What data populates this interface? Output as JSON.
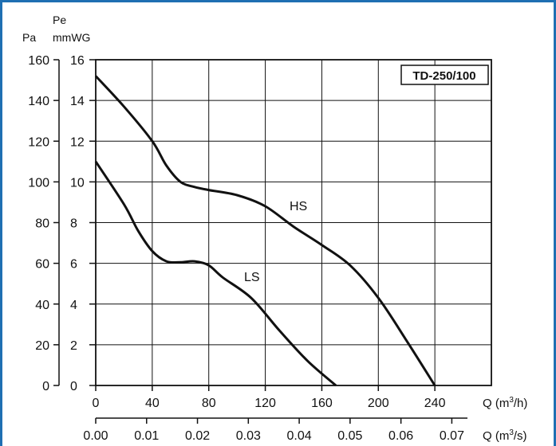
{
  "chart_data": {
    "type": "line",
    "model_label": "TD-250/100",
    "left_axis": {
      "symbol": "Pe",
      "unit_pa": "Pa",
      "unit_mmwg": "mmWG",
      "pa_ticks": [
        "160",
        "140",
        "120",
        "100",
        "80",
        "60",
        "40",
        "20",
        "0"
      ],
      "mmwg_ticks": [
        "16",
        "14",
        "12",
        "10",
        "8",
        "6",
        "4",
        "2",
        "0"
      ],
      "ylim_mmwg": [
        0,
        16
      ]
    },
    "x_axis_m3h": {
      "label": "Q (m",
      "sup": "3",
      "label_end": "/h)",
      "ticks": [
        "0",
        "40",
        "80",
        "120",
        "160",
        "200",
        "240"
      ],
      "xlim": [
        0,
        280
      ]
    },
    "x_axis_m3s": {
      "label": "Q (m",
      "sup": "3",
      "label_end": "/s)",
      "ticks": [
        "0.00",
        "0.01",
        "0.02",
        "0.03",
        "0.04",
        "0.05",
        "0.06",
        "0.07"
      ]
    },
    "series": [
      {
        "name": "HS",
        "x": [
          0,
          20,
          40,
          50,
          60,
          70,
          80,
          100,
          120,
          140,
          160,
          180,
          200,
          220,
          240
        ],
        "y": [
          15.2,
          13.7,
          12.0,
          10.8,
          10.0,
          9.75,
          9.6,
          9.35,
          8.8,
          7.8,
          6.9,
          5.9,
          4.3,
          2.2,
          0.0
        ]
      },
      {
        "name": "LS",
        "x": [
          0,
          20,
          30,
          40,
          50,
          60,
          70,
          80,
          90,
          110,
          130,
          150,
          170
        ],
        "y": [
          11.0,
          8.9,
          7.6,
          6.6,
          6.1,
          6.05,
          6.1,
          5.9,
          5.3,
          4.3,
          2.7,
          1.2,
          0.0
        ]
      }
    ],
    "colors": {
      "line": "#111111",
      "grid": "#111111",
      "frame": "#1f6fb2"
    }
  }
}
